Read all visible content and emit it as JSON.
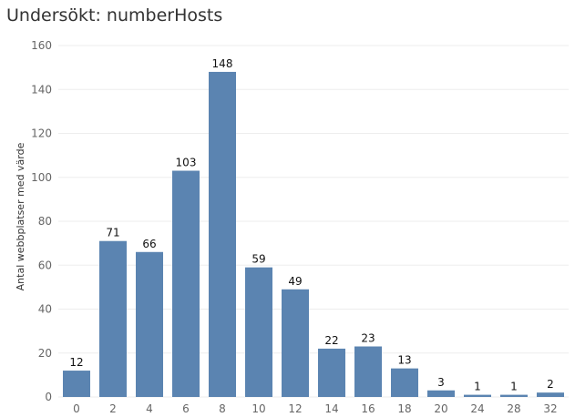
{
  "chart_data": {
    "type": "bar",
    "title": "Undersökt: numberHosts",
    "ylabel": "Antal webbplatser med värde",
    "xlabel": "",
    "categories": [
      "0",
      "2",
      "4",
      "6",
      "8",
      "10",
      "12",
      "14",
      "16",
      "18",
      "20",
      "24",
      "28",
      "32"
    ],
    "values": [
      12,
      71,
      66,
      103,
      148,
      59,
      49,
      22,
      23,
      13,
      3,
      1,
      1,
      2
    ],
    "ylim": [
      0,
      160
    ],
    "yticks": [
      0,
      20,
      40,
      60,
      80,
      100,
      120,
      140,
      160
    ],
    "grid": true,
    "legend": "none",
    "bar_color": "#5b84b1"
  }
}
